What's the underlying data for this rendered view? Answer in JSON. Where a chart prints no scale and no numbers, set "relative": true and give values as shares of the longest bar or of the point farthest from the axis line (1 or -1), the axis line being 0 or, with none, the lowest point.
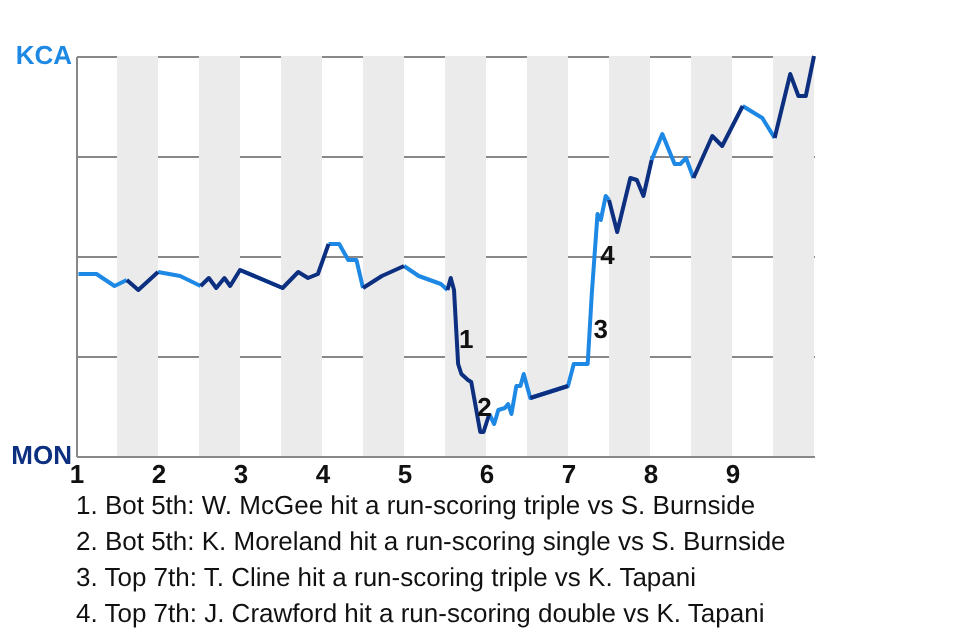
{
  "chart_data": {
    "type": "line",
    "relative": true,
    "x": [
      1.03,
      1.25,
      1.47,
      1.62,
      1.76,
      2.0,
      2.27,
      2.52,
      2.62,
      2.71,
      2.81,
      2.88,
      3.0,
      3.52,
      3.71,
      3.83,
      3.95,
      4.08,
      4.21,
      4.32,
      4.42,
      4.5,
      4.73,
      5.0,
      5.18,
      5.45,
      5.53,
      5.57,
      5.61,
      5.66,
      5.7,
      5.78,
      5.82,
      5.93,
      5.97,
      6.04,
      6.1,
      6.15,
      6.23,
      6.27,
      6.31,
      6.37,
      6.42,
      6.46,
      6.54,
      7.0,
      7.07,
      7.24,
      7.29,
      7.36,
      7.4,
      7.46,
      7.5,
      7.6,
      7.76,
      7.84,
      7.92,
      8.02,
      8.15,
      8.3,
      8.37,
      8.44,
      8.53,
      8.76,
      8.88,
      9.13,
      9.37,
      9.52,
      9.71,
      9.81,
      9.9,
      10.0
    ],
    "series": [
      {
        "color": "#1e88e5",
        "values": [
          0.455,
          0.455,
          0.425,
          0.44,
          null,
          0.46,
          0.45,
          0.425,
          null,
          null,
          null,
          null,
          0.465,
          0.42,
          null,
          null,
          null,
          0.53,
          0.53,
          0.49,
          0.49,
          0.42,
          null,
          0.475,
          0.45,
          0.43,
          0.415,
          null,
          null,
          null,
          null,
          null,
          null,
          null,
          null,
          0.105,
          0.08,
          0.115,
          0.12,
          0.13,
          0.105,
          0.175,
          0.175,
          0.205,
          0.145,
          0.175,
          0.23,
          0.23,
          0.405,
          0.605,
          0.59,
          0.65,
          0.64,
          null,
          null,
          null,
          null,
          0.74,
          0.805,
          0.73,
          0.73,
          0.745,
          0.695,
          null,
          null,
          0.875,
          0.845,
          0.795,
          null,
          null,
          null,
          null
        ]
      },
      {
        "color": "#0d2f80",
        "values": [
          null,
          null,
          null,
          0.44,
          0.415,
          0.46,
          null,
          0.425,
          0.445,
          0.42,
          0.445,
          0.425,
          0.465,
          0.42,
          0.46,
          0.445,
          0.455,
          0.53,
          null,
          null,
          null,
          0.42,
          0.45,
          0.475,
          null,
          null,
          0.415,
          0.445,
          0.415,
          0.23,
          0.205,
          0.19,
          0.185,
          0.06,
          0.06,
          0.105,
          null,
          null,
          null,
          null,
          null,
          null,
          null,
          null,
          0.145,
          0.175,
          null,
          null,
          null,
          null,
          null,
          null,
          0.64,
          0.56,
          0.695,
          0.69,
          0.65,
          0.74,
          null,
          null,
          null,
          null,
          0.695,
          0.8,
          0.775,
          0.875,
          null,
          0.795,
          0.955,
          0.9,
          0.9,
          1.0
        ]
      }
    ],
    "xlim": [
      1,
      10
    ],
    "xticks": [
      1,
      2,
      3,
      4,
      5,
      6,
      7,
      8,
      9
    ],
    "grid": "y",
    "bands": [
      {
        "axis": "x",
        "from": 1.5,
        "to": 2,
        "color": "#ebebeb"
      },
      {
        "axis": "x",
        "from": 2.5,
        "to": 3,
        "color": "#ebebeb"
      },
      {
        "axis": "x",
        "from": 3.5,
        "to": 4,
        "color": "#ebebeb"
      },
      {
        "axis": "x",
        "from": 4.5,
        "to": 5,
        "color": "#ebebeb"
      },
      {
        "axis": "x",
        "from": 5.5,
        "to": 6,
        "color": "#ebebeb"
      },
      {
        "axis": "x",
        "from": 6.5,
        "to": 7,
        "color": "#ebebeb"
      },
      {
        "axis": "x",
        "from": 7.5,
        "to": 8,
        "color": "#ebebeb"
      },
      {
        "axis": "x",
        "from": 8.5,
        "to": 9,
        "color": "#ebebeb"
      },
      {
        "axis": "x",
        "from": 9.5,
        "to": 10,
        "color": "#ebebeb"
      }
    ],
    "annotations": [
      {
        "text": "1",
        "x": 5.76,
        "y": 0.29
      },
      {
        "text": "2",
        "x": 5.98,
        "y": 0.12
      },
      {
        "text": "3",
        "x": 7.4,
        "y": 0.315
      },
      {
        "text": "4",
        "x": 7.48,
        "y": 0.5
      },
      "KCA",
      "MON",
      "1. Bot 5th: W. McGee hit a run-scoring triple vs S. Burnside",
      "2. Bot 5th: K. Moreland hit a run-scoring single vs S. Burnside",
      "3. Top 7th: T. Cline hit a run-scoring triple vs K. Tapani",
      "4. Top 7th: J. Crawford hit a run-scoring double vs K. Tapani"
    ]
  }
}
